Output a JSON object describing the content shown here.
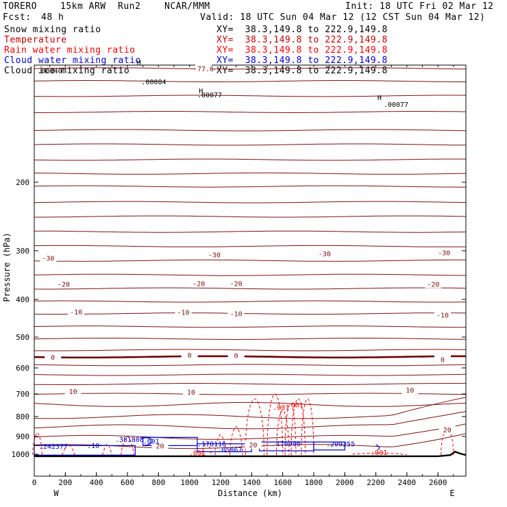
{
  "header": {
    "model": "TORERO",
    "resolution": "15km ARW",
    "run": "Run2",
    "org": "NCAR/MMM",
    "init": "Init: 18 UTC Fri 02 Mar 12",
    "fcst_label": "Fcst:",
    "fcst_value": "48 h",
    "valid": "Valid: 18 UTC Sun 04 Mar 12 (12 CST Sun 04 Mar 12)"
  },
  "legend": [
    {
      "name": "Snow mixing ratio",
      "color": "#000000",
      "xy": ""
    },
    {
      "name": "Temperature",
      "color": "#c00000",
      "xy": "XY=  38.3,149.8 to 222.9,149.8"
    },
    {
      "name": "Rain water mixing ratio",
      "color": "#ff0000",
      "xy": "XY=  38.3,149.8 to 222.9,149.8"
    },
    {
      "name": "Cloud water mixing ratio",
      "color": "#0000cc",
      "xy": "XY=  38.3,149.8 to 222.9,149.8"
    },
    {
      "name": "Cloud ice mixing ratio",
      "color": "#000000",
      "xy": "XY=  38.3,149.8 to 222.9,149.8"
    }
  ],
  "snow_xy": "XY=  38.3,149.8 to 222.9,149.8",
  "colors": {
    "temperature": "#7a1010",
    "freezing_line": "#6b0000",
    "rain": "#ff0000",
    "cloud_water": "#0000cc",
    "terrain": "#000000"
  },
  "chart_data": {
    "type": "contour-cross-section",
    "ylabel": "Pressure (hPa)",
    "xlabel": "Distance (km)",
    "x_left_label": "W",
    "x_right_label": "E",
    "xlim": [
      0,
      2780
    ],
    "ylim": [
      1020,
      100
    ],
    "yscale": "log",
    "x_ticks": [
      0,
      200,
      400,
      600,
      800,
      1000,
      1200,
      1400,
      1600,
      1800,
      2000,
      2200,
      2400,
      2600
    ],
    "y_ticks": [
      200,
      300,
      400,
      500,
      600,
      700,
      800,
      900,
      1000
    ],
    "temperature_contours": {
      "levels": [
        -77,
        -75,
        -70,
        -65,
        -60,
        -55,
        -50,
        -45,
        -40,
        -35,
        -30,
        -25,
        -20,
        -15,
        -10,
        -5,
        0,
        5,
        10,
        15,
        20
      ],
      "bold_level": 0,
      "labels": [
        {
          "value": "-77.6",
          "x": 1090,
          "p": 102
        },
        {
          "value": "-30",
          "x": 90,
          "p": 313
        },
        {
          "value": "-30",
          "x": 1160,
          "p": 307
        },
        {
          "value": "-30",
          "x": 1870,
          "p": 305
        },
        {
          "value": "-30",
          "x": 2640,
          "p": 303
        },
        {
          "value": "-20",
          "x": 190,
          "p": 365
        },
        {
          "value": "-20",
          "x": 1060,
          "p": 364
        },
        {
          "value": "-20",
          "x": 1300,
          "p": 364
        },
        {
          "value": "-20",
          "x": 2570,
          "p": 365
        },
        {
          "value": "-10",
          "x": 270,
          "p": 430
        },
        {
          "value": "-10",
          "x": 960,
          "p": 431
        },
        {
          "value": "-10",
          "x": 1300,
          "p": 435
        },
        {
          "value": "-10",
          "x": 2630,
          "p": 438
        },
        {
          "value": "0",
          "x": 120,
          "p": 562
        },
        {
          "value": "0",
          "x": 1000,
          "p": 555
        },
        {
          "value": "0",
          "x": 1300,
          "p": 557
        },
        {
          "value": "0",
          "x": 2630,
          "p": 570
        },
        {
          "value": "10",
          "x": 250,
          "p": 688
        },
        {
          "value": "10",
          "x": 1010,
          "p": 692
        },
        {
          "value": "10",
          "x": 2420,
          "p": 683
        },
        {
          "value": "20",
          "x": 810,
          "p": 951
        },
        {
          "value": "20",
          "x": 1410,
          "p": 944
        },
        {
          "value": "20",
          "x": 2660,
          "p": 865
        }
      ]
    },
    "snow_labels": [
      {
        "value": ".00040",
        "x": 20,
        "p": 105
      },
      {
        "value": ".00084",
        "x": 690,
        "p": 112
      },
      {
        "value": ".00077",
        "x": 1050,
        "p": 121
      },
      {
        "value": ".00077",
        "x": 2250,
        "p": 128
      }
    ],
    "rain_labels": [
      {
        "value": ".001",
        "x": 1590,
        "p": 768
      },
      {
        "value": ".001",
        "x": 1680,
        "p": 758
      },
      {
        "value": ".001",
        "x": 1050,
        "p": 1007
      },
      {
        "value": ".001",
        "x": 2220,
        "p": 1005
      }
    ],
    "maxima": [
      {
        "label": "H",
        "x": 660,
        "p": 100
      },
      {
        "label": "H",
        "x": 2210,
        "p": 123
      },
      {
        "label": "H",
        "x": 1060,
        "p": 118
      },
      {
        "label": ".381808",
        "x": 520,
        "p": 930
      },
      {
        "label": ".242377",
        "x": 30,
        "p": 968
      },
      {
        "label": ".178116",
        "x": 1050,
        "p": 954
      },
      {
        "label": ".176096",
        "x": 1530,
        "p": 953
      },
      {
        "label": ".209255",
        "x": 1880,
        "p": 954
      },
      {
        "label": ".05867",
        "x": 1180,
        "p": 987
      },
      {
        "label": ".10",
        "x": 340,
        "p": 965
      },
      {
        "label": ".001",
        "x": 700,
        "p": 940
      }
    ]
  }
}
